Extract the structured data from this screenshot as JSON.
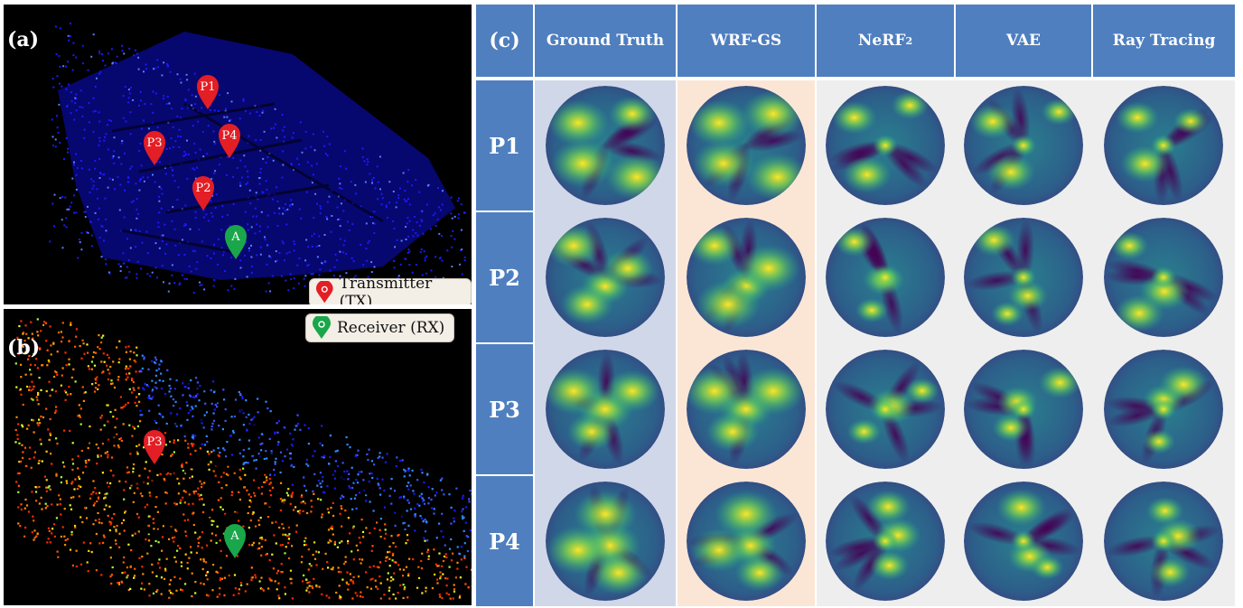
{
  "panel_labels": {
    "a": "(a)",
    "b": "(b)",
    "c": "(c)"
  },
  "markers": {
    "tx": [
      "P1",
      "P4",
      "P3",
      "P2"
    ],
    "panel_b_tx": "P3",
    "rx_glyph": "A"
  },
  "legend": {
    "transmitter": "Transmitter (TX)",
    "receiver": "Receiver (RX)",
    "tx_icon": "red-location-pin-icon",
    "rx_icon": "green-location-pin-icon"
  },
  "grid": {
    "columns": [
      "Ground Truth",
      "WRF-GS",
      "NeRF",
      "VAE",
      "Ray Tracing"
    ],
    "nerf_superscript": "2",
    "rows": [
      "P1",
      "P2",
      "P3",
      "P4"
    ]
  },
  "colors": {
    "header_blue": "#4f7fbf",
    "tx_red": "#e41e25",
    "rx_green": "#1aa64a",
    "gt_column_bg": "#d0d7e8",
    "wrfgs_column_bg": "#fbe6d6",
    "other_column_bg": "#eeeeee",
    "pointcloud_a": "#1a1aff"
  }
}
